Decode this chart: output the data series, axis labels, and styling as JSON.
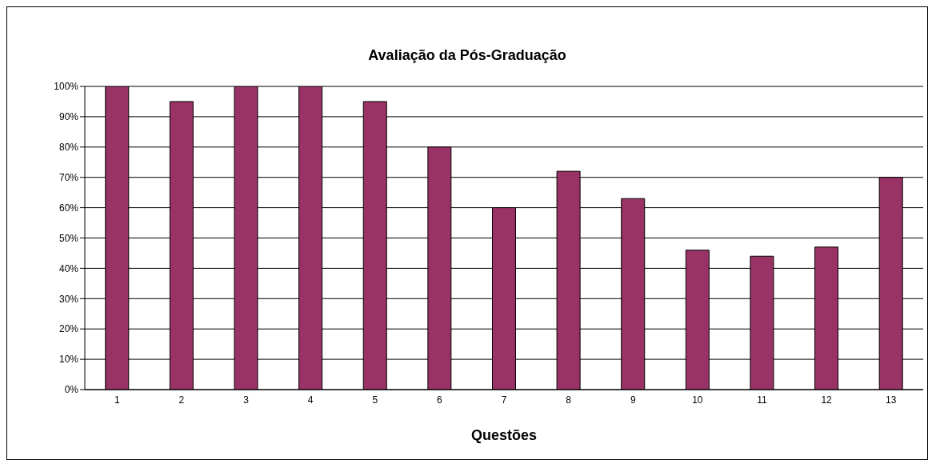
{
  "chart_data": {
    "type": "bar",
    "title": "Avaliação da Pós-Graduação",
    "xlabel": "Questões",
    "categories": [
      "1",
      "2",
      "3",
      "4",
      "5",
      "6",
      "7",
      "8",
      "9",
      "10",
      "11",
      "12",
      "13"
    ],
    "values": [
      100,
      95,
      100,
      100,
      95,
      80,
      60,
      72,
      63,
      46,
      44,
      47,
      70
    ],
    "color": "#993366",
    "ylim": [
      0,
      100
    ],
    "yticks": [
      {
        "value": 0,
        "label": "0%"
      },
      {
        "value": 10,
        "label": "10%"
      },
      {
        "value": 20,
        "label": "20%"
      },
      {
        "value": 30,
        "label": "30%"
      },
      {
        "value": 40,
        "label": "40%"
      },
      {
        "value": 50,
        "label": "50%"
      },
      {
        "value": 60,
        "label": "60%"
      },
      {
        "value": 70,
        "label": "70%"
      },
      {
        "value": 80,
        "label": "80%"
      },
      {
        "value": 90,
        "label": "90%"
      },
      {
        "value": 100,
        "label": "100%"
      }
    ],
    "grid": "y"
  }
}
